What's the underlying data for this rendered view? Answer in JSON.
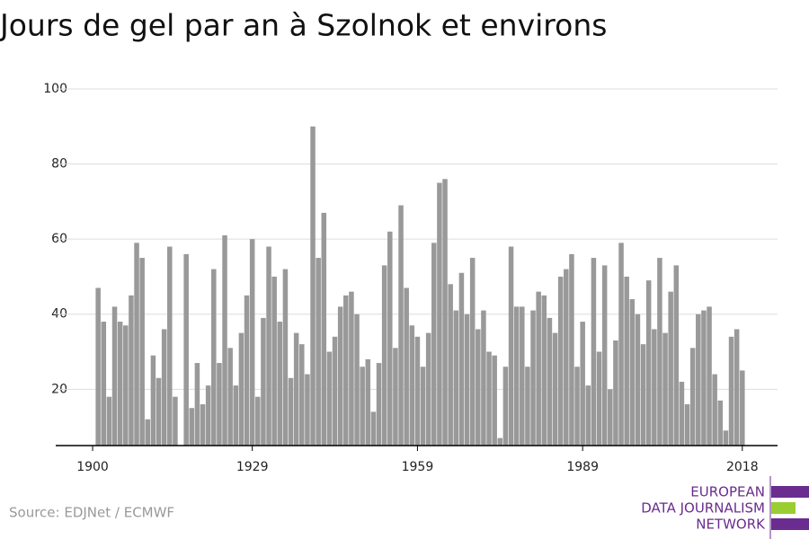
{
  "chart_data": {
    "type": "bar",
    "title": "Jours de gel par an à Szolnok et environs",
    "x": [
      1901,
      1902,
      1903,
      1904,
      1905,
      1906,
      1907,
      1908,
      1909,
      1910,
      1911,
      1912,
      1913,
      1914,
      1915,
      1916,
      1917,
      1918,
      1919,
      1920,
      1921,
      1922,
      1923,
      1924,
      1925,
      1926,
      1927,
      1928,
      1929,
      1930,
      1931,
      1932,
      1933,
      1934,
      1935,
      1936,
      1937,
      1938,
      1939,
      1940,
      1941,
      1942,
      1943,
      1944,
      1945,
      1946,
      1947,
      1948,
      1949,
      1950,
      1951,
      1952,
      1953,
      1954,
      1955,
      1956,
      1957,
      1958,
      1959,
      1960,
      1961,
      1962,
      1963,
      1964,
      1965,
      1966,
      1967,
      1968,
      1969,
      1970,
      1971,
      1972,
      1973,
      1974,
      1975,
      1976,
      1977,
      1978,
      1979,
      1980,
      1981,
      1982,
      1983,
      1984,
      1985,
      1986,
      1987,
      1988,
      1989,
      1990,
      1991,
      1992,
      1993,
      1994,
      1995,
      1996,
      1997,
      1998,
      1999,
      2000,
      2001,
      2002,
      2003,
      2004,
      2005,
      2006,
      2007,
      2008,
      2009,
      2010,
      2011,
      2012,
      2013,
      2014,
      2015,
      2016,
      2017,
      2018
    ],
    "values": [
      47,
      38,
      18,
      42,
      38,
      37,
      45,
      59,
      55,
      12,
      29,
      23,
      36,
      58,
      18,
      5,
      56,
      15,
      27,
      16,
      21,
      52,
      27,
      61,
      31,
      21,
      35,
      45,
      60,
      18,
      39,
      58,
      50,
      38,
      52,
      23,
      35,
      32,
      24,
      90,
      55,
      67,
      30,
      34,
      42,
      45,
      46,
      40,
      26,
      28,
      14,
      27,
      53,
      62,
      31,
      69,
      47,
      37,
      34,
      26,
      35,
      59,
      75,
      76,
      48,
      41,
      51,
      40,
      55,
      36,
      41,
      30,
      29,
      7,
      26,
      58,
      42,
      42,
      26,
      41,
      46,
      45,
      39,
      35,
      50,
      52,
      56,
      26,
      38,
      21,
      55,
      30,
      53,
      20,
      33,
      59,
      50,
      44,
      40,
      32,
      49,
      36,
      55,
      35,
      46,
      53,
      22,
      16,
      31,
      40,
      41,
      42,
      24,
      17,
      9,
      34,
      36,
      25
    ],
    "color": "#999999",
    "xlim": [
      1893.3,
      2024.4
    ],
    "xticks": [
      1900,
      1929,
      1959,
      1989,
      2018
    ],
    "ylim": [
      5,
      100
    ],
    "yticks": [
      20,
      40,
      60,
      80,
      100
    ],
    "grid": true
  },
  "source": "Source: EDJNet / ECMWF",
  "logo": [
    "EUROPEAN",
    "DATA JOURNALISM",
    "NETWORK"
  ]
}
